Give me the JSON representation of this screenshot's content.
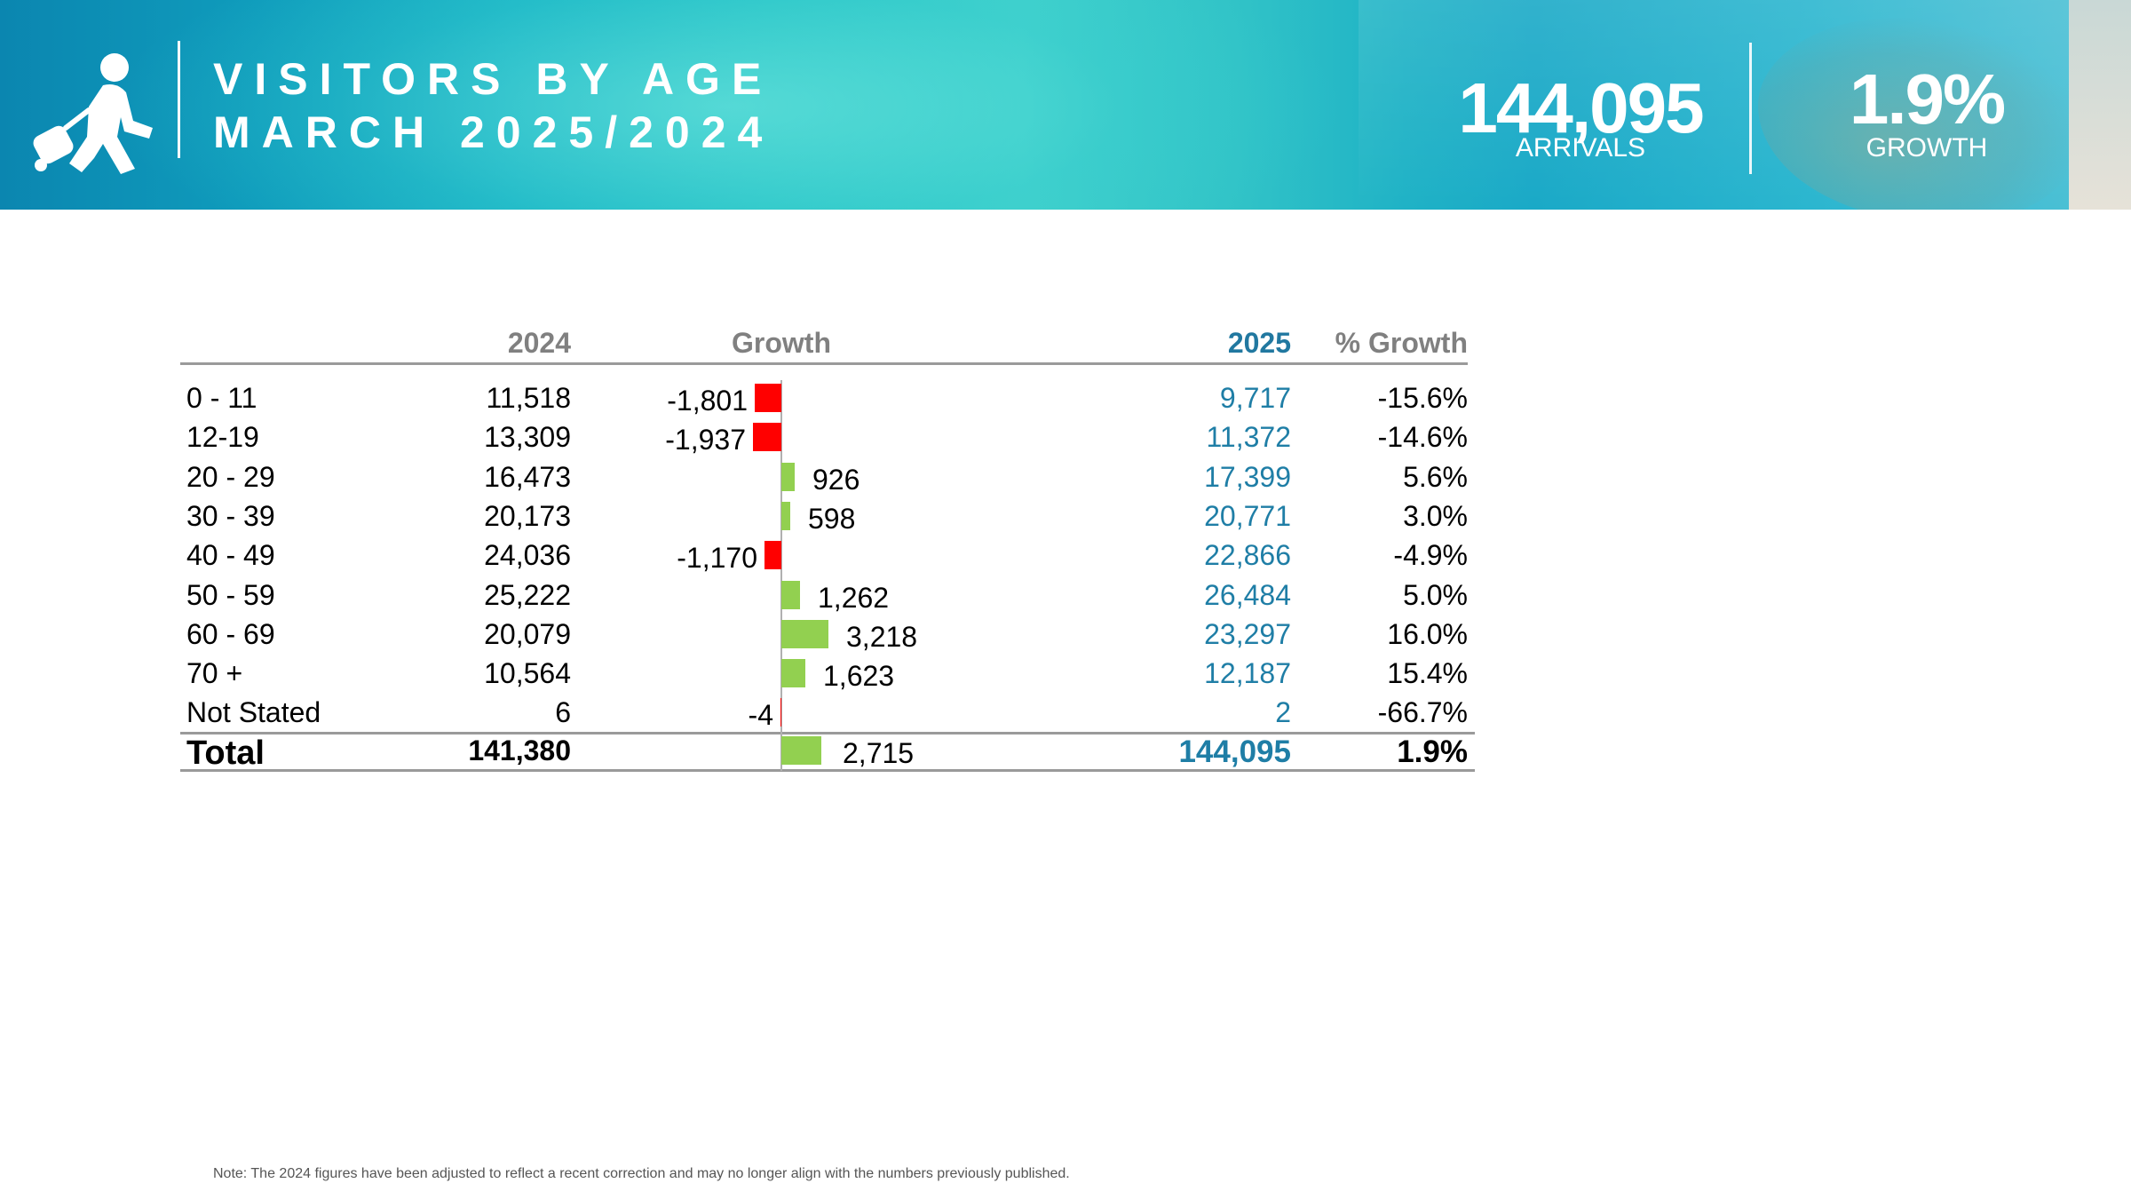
{
  "header": {
    "title_line1": "VISITORS BY AGE",
    "title_line2": "MARCH 2025/2024",
    "icon": "traveler-with-luggage-icon",
    "kpis": [
      {
        "value": "144,095",
        "label": "ARRIVALS"
      },
      {
        "value": "1.9%",
        "label": "GROWTH"
      }
    ]
  },
  "table": {
    "columns": [
      "",
      "2024",
      "Growth",
      "2025",
      "% Growth"
    ],
    "rows": [
      {
        "label": "0 - 11",
        "y2024": "11,518",
        "growth": "-1,801",
        "y2025": "9,717",
        "pct": "-15.6%"
      },
      {
        "label": "12-19",
        "y2024": "13,309",
        "growth": "-1,937",
        "y2025": "11,372",
        "pct": "-14.6%"
      },
      {
        "label": "20 - 29",
        "y2024": "16,473",
        "growth": "926",
        "y2025": "17,399",
        "pct": "5.6%"
      },
      {
        "label": "30 - 39",
        "y2024": "20,173",
        "growth": "598",
        "y2025": "20,771",
        "pct": "3.0%"
      },
      {
        "label": "40 - 49",
        "y2024": "24,036",
        "growth": "-1,170",
        "y2025": "22,866",
        "pct": "-4.9%"
      },
      {
        "label": "50 - 59",
        "y2024": "25,222",
        "growth": "1,262",
        "y2025": "26,484",
        "pct": "5.0%"
      },
      {
        "label": "60 - 69",
        "y2024": "20,079",
        "growth": "3,218",
        "y2025": "23,297",
        "pct": "16.0%"
      },
      {
        "label": "70 +",
        "y2024": "10,564",
        "growth": "1,623",
        "y2025": "12,187",
        "pct": "15.4%"
      },
      {
        "label": "Not Stated",
        "y2024": "6",
        "growth": "-4",
        "y2025": "2",
        "pct": "-66.7%"
      }
    ],
    "total": {
      "label": "Total",
      "y2024": "141,380",
      "growth": "2,715",
      "y2025": "144,095",
      "pct": "1.9%"
    }
  },
  "chart_data": {
    "type": "bar",
    "orientation": "horizontal",
    "categories": [
      "0 - 11",
      "12-19",
      "20 - 29",
      "30 - 39",
      "40 - 49",
      "50 - 59",
      "60 - 69",
      "70 +",
      "Not Stated",
      "Total"
    ],
    "series": [
      {
        "values": [
          -1801,
          -1937,
          926,
          598,
          -1170,
          1262,
          3218,
          1623,
          -4,
          2715
        ]
      }
    ],
    "title": "Growth",
    "negative_color": "#ff0000",
    "positive_color": "#92d050"
  },
  "colors": {
    "y2025_text": "#1f7ea6",
    "header_grey": "#808080"
  },
  "note": "Note: The 2024 figures have been adjusted to reflect a recent correction and may no longer align with the numbers previously published."
}
